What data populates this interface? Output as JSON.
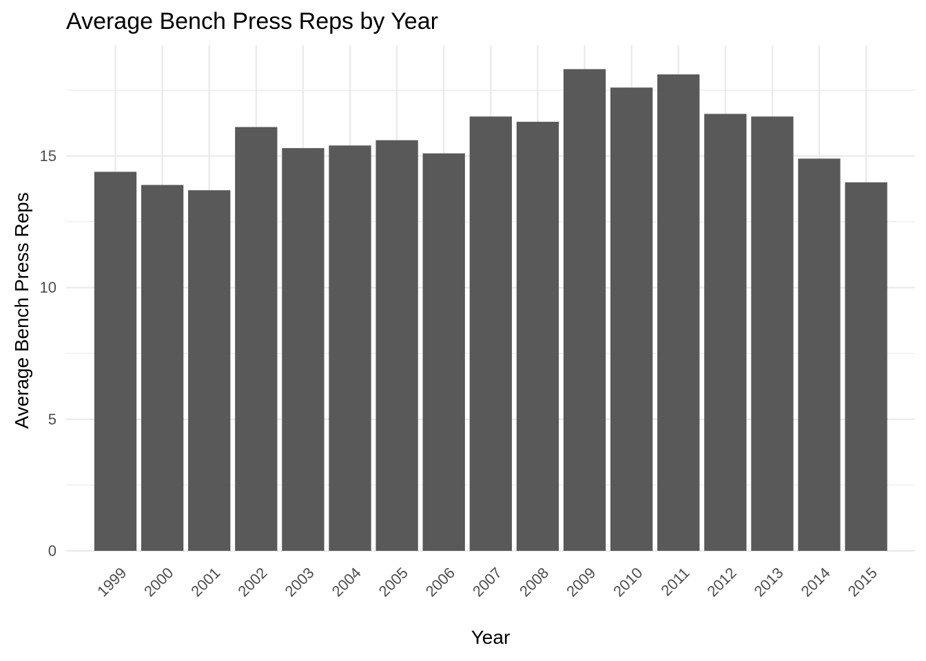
{
  "chart_data": {
    "type": "bar",
    "title": "Average Bench Press Reps by Year",
    "xlabel": "Year",
    "ylabel": "Average Bench Press Reps",
    "categories": [
      "1999",
      "2000",
      "2001",
      "2002",
      "2003",
      "2004",
      "2005",
      "2006",
      "2007",
      "2008",
      "2009",
      "2010",
      "2011",
      "2012",
      "2013",
      "2014",
      "2015"
    ],
    "values": [
      14.4,
      13.9,
      13.7,
      16.1,
      15.3,
      15.4,
      15.6,
      15.1,
      16.5,
      16.3,
      18.3,
      17.6,
      18.1,
      16.6,
      16.5,
      14.9,
      14.0
    ],
    "ylim": [
      0,
      19.2
    ],
    "yticks": [
      0,
      5,
      10,
      15
    ],
    "grid": true,
    "x_tick_rotation": "45-degree",
    "colors": {
      "bar": "#595959",
      "grid": "#ebebeb",
      "tick_text": "#4d4d4d",
      "text": "#000000",
      "background": "#ffffff"
    }
  }
}
